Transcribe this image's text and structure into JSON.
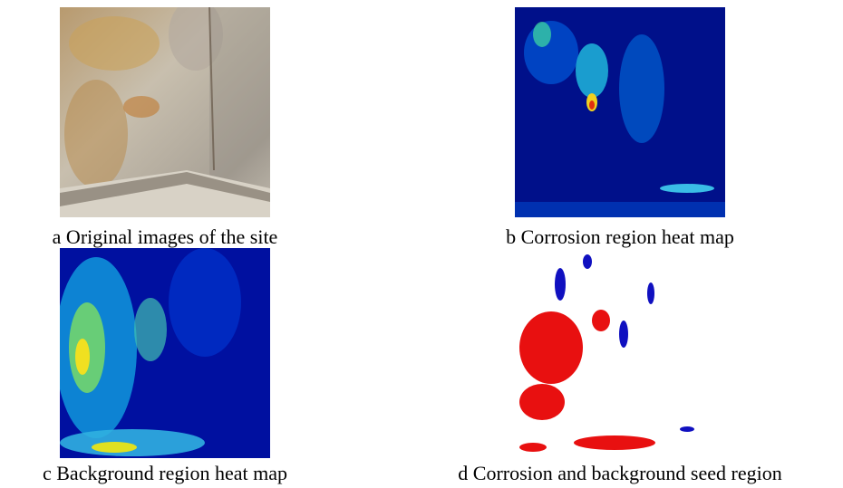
{
  "panels": [
    {
      "caption": "a Original images of the site"
    },
    {
      "caption": "b Corrosion region heat map"
    },
    {
      "caption": "c Background region heat map"
    },
    {
      "caption": "d Corrosion and background seed region"
    }
  ]
}
